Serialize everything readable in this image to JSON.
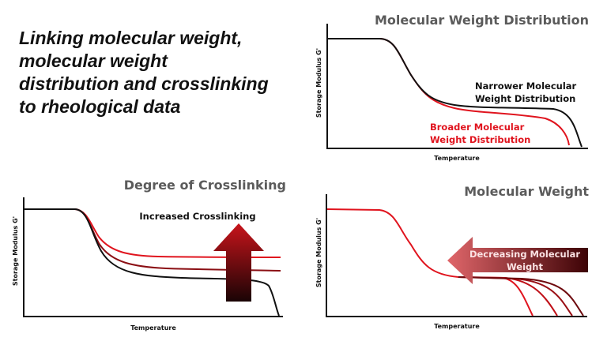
{
  "headline": [
    "Linking molecular weight,",
    "molecular weight",
    "distribution and crosslinking",
    "to rheological data"
  ],
  "panels": {
    "mwd": {
      "title": "Molecular Weight Distribution",
      "ylabel": "Storage Modulus G'",
      "xlabel": "Temperature",
      "narrow_label": [
        "Narrower Molecular",
        "Weight Distribution"
      ],
      "broad_label": [
        "Broader Molecular",
        "Weight Distribution"
      ]
    },
    "crosslink": {
      "title": "Degree of Crosslinking",
      "ylabel": "Storage Modulus G'",
      "xlabel": "Temperature",
      "arrow_label": "Increased Crosslinking"
    },
    "mw": {
      "title": "Molecular Weight",
      "ylabel": "Storage Modulus G'",
      "xlabel": "Temperature",
      "arrow_label": [
        "Decreasing Molecular",
        "Weight"
      ]
    }
  },
  "colors": {
    "black": "#111111",
    "red": "#e0141e",
    "dark_red": "#8b0f14",
    "title_gray": "#5b5b5b"
  }
}
